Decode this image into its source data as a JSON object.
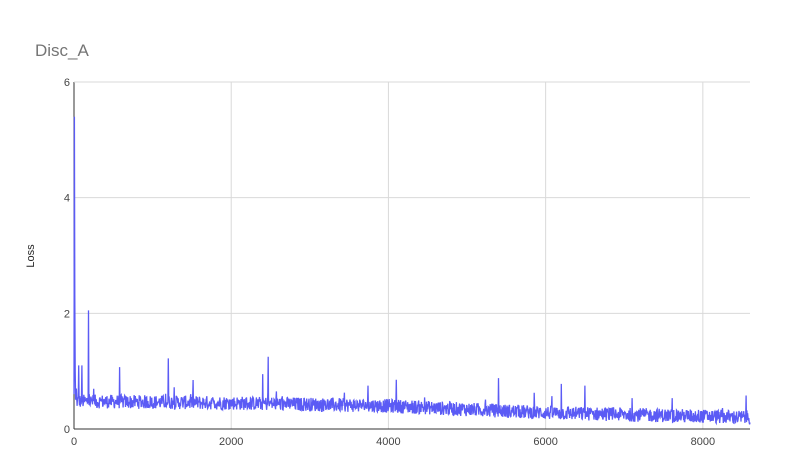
{
  "chart_data": {
    "type": "line",
    "title": "Disc_A",
    "xlabel": "",
    "ylabel": "Loss",
    "xlim": [
      0,
      8600
    ],
    "ylim": [
      0,
      6
    ],
    "xticks": [
      0,
      2000,
      4000,
      6000,
      8000
    ],
    "yticks": [
      0,
      2,
      4,
      6
    ],
    "grid": true,
    "legend": "none",
    "series_color": "#5b5bf5",
    "series": [
      {
        "values_description_free": true,
        "x_start": 0,
        "x_step": 5,
        "notable_points": [
          {
            "x": 0,
            "y": 0.6
          },
          {
            "x": 5,
            "y": 5.4
          },
          {
            "x": 10,
            "y": 2.3
          },
          {
            "x": 15,
            "y": 1.0
          },
          {
            "x": 30,
            "y": 0.7
          },
          {
            "x": 60,
            "y": 1.1
          },
          {
            "x": 100,
            "y": 1.1
          },
          {
            "x": 185,
            "y": 2.05
          },
          {
            "x": 580,
            "y": 1.07
          },
          {
            "x": 1200,
            "y": 1.22
          },
          {
            "x": 2470,
            "y": 1.25
          },
          {
            "x": 2400,
            "y": 0.95
          },
          {
            "x": 4100,
            "y": 0.85
          },
          {
            "x": 5400,
            "y": 0.88
          },
          {
            "x": 6200,
            "y": 0.78
          },
          {
            "x": 6500,
            "y": 0.75
          },
          {
            "x": 8550,
            "y": 0.58
          }
        ],
        "trend": [
          {
            "x": 0,
            "y": 0.48
          },
          {
            "x": 2000,
            "y": 0.45
          },
          {
            "x": 4000,
            "y": 0.4
          },
          {
            "x": 6000,
            "y": 0.28
          },
          {
            "x": 8000,
            "y": 0.22
          },
          {
            "x": 8600,
            "y": 0.2
          }
        ],
        "noise": 0.12
      }
    ]
  }
}
